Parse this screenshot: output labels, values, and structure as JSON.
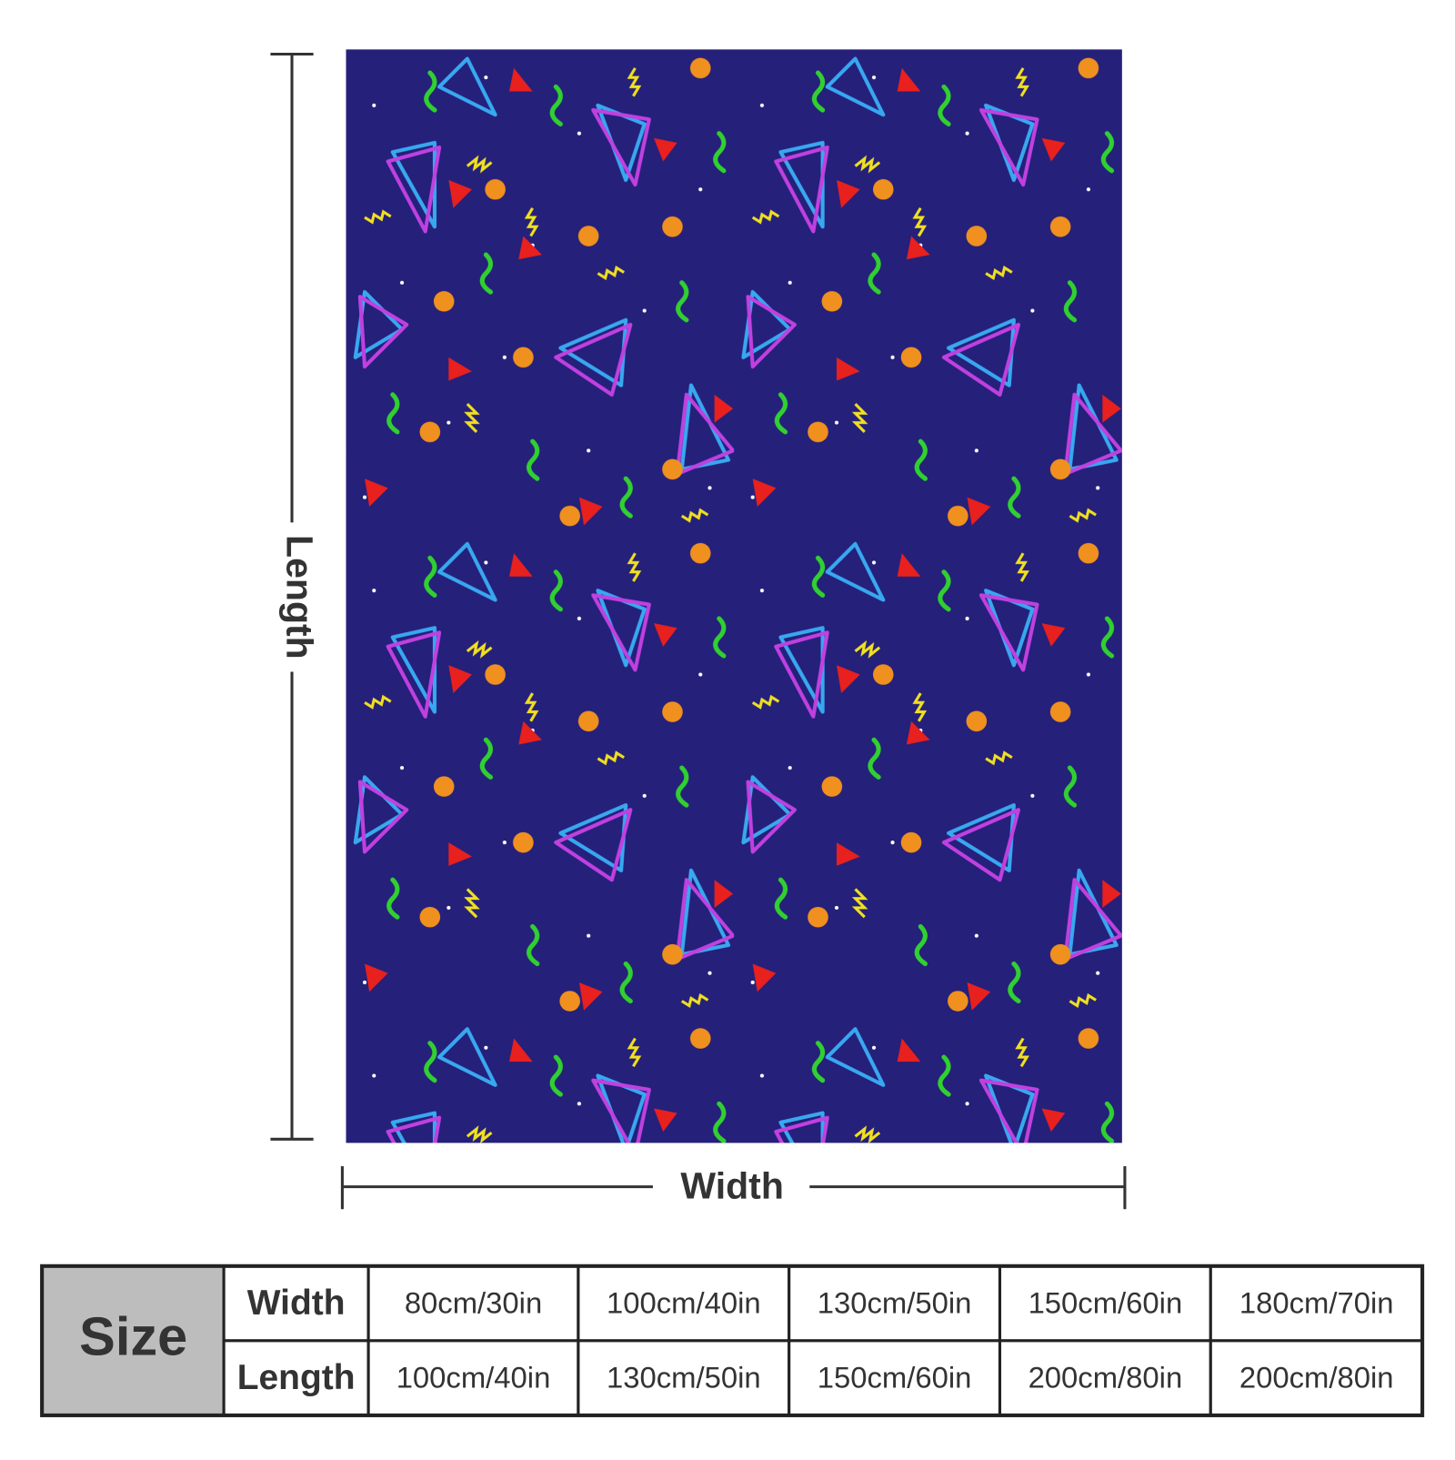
{
  "dimension_labels": {
    "length": "Length",
    "width": "Width"
  },
  "size_table": {
    "header": "Size",
    "rows": [
      {
        "label": "Width",
        "cells": [
          "80cm/30in",
          "100cm/40in",
          "130cm/50in",
          "150cm/60in",
          "180cm/70in"
        ]
      },
      {
        "label": "Length",
        "cells": [
          "100cm/40in",
          "130cm/50in",
          "150cm/60in",
          "200cm/80in",
          "200cm/80in"
        ]
      }
    ]
  }
}
